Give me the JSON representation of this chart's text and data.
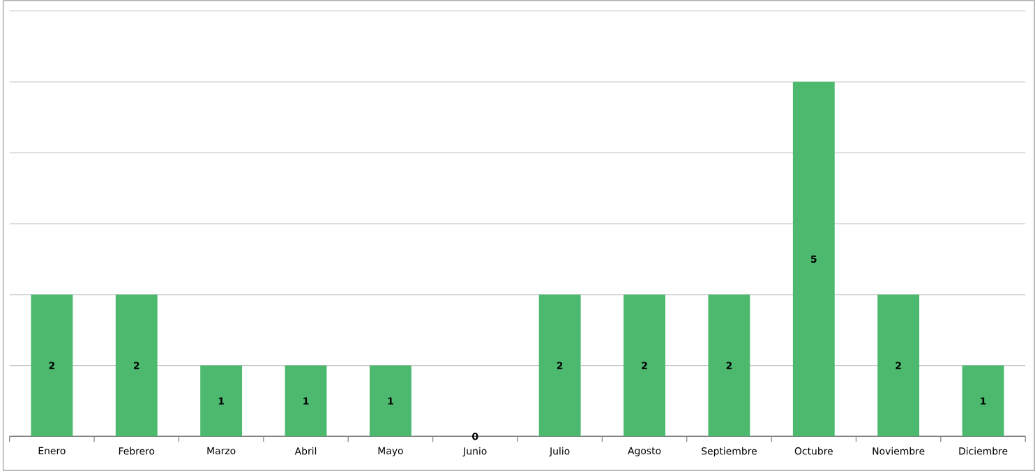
{
  "chart_data": {
    "type": "bar",
    "categories": [
      "Enero",
      "Febrero",
      "Marzo",
      "Abril",
      "Mayo",
      "Junio",
      "Julio",
      "Agosto",
      "Septiembre",
      "Octubre",
      "Noviembre",
      "Diciembre"
    ],
    "values": [
      2,
      2,
      1,
      1,
      1,
      0,
      2,
      2,
      2,
      5,
      2,
      1
    ],
    "color": "#4cb96f",
    "ylim": [
      0,
      6
    ],
    "yticks": [
      {
        "value": 0,
        "label": null
      },
      {
        "value": 1,
        "label": null
      },
      {
        "value": 2,
        "label": null
      },
      {
        "value": 3,
        "label": null
      },
      {
        "value": 4,
        "label": null
      },
      {
        "value": 5,
        "label": null
      },
      {
        "value": 6,
        "label": null
      }
    ],
    "grid": "y",
    "tick_labels": "x",
    "data_labels": true
  }
}
